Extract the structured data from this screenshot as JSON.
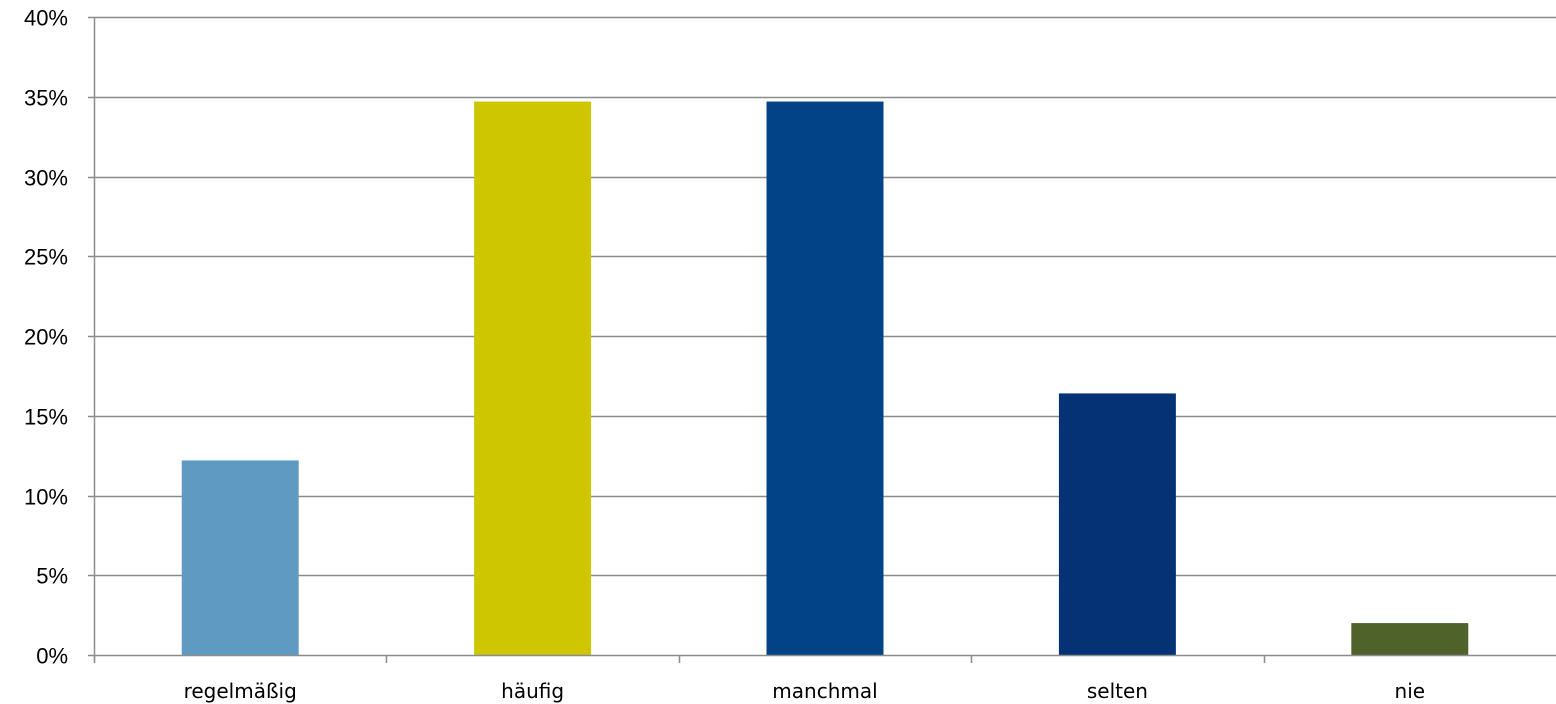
{
  "chart_data": {
    "type": "bar",
    "categories": [
      "regelmäßig",
      "häufig",
      "manchmal",
      "selten",
      "nie"
    ],
    "values": [
      12.2,
      34.7,
      34.7,
      16.4,
      2.0
    ],
    "colors": [
      "#5f9ac3",
      "#cdc600",
      "#024286",
      "#053275",
      "#4e6229"
    ],
    "ylim": [
      0,
      40
    ],
    "ytick_values": [
      0,
      5,
      10,
      15,
      20,
      25,
      30,
      35,
      40
    ],
    "ytick_labels": [
      "0%",
      "5%",
      "10%",
      "15%",
      "20%",
      "25%",
      "30%",
      "35%",
      "40%"
    ],
    "grid": true,
    "title": "",
    "xlabel": "",
    "ylabel": ""
  }
}
